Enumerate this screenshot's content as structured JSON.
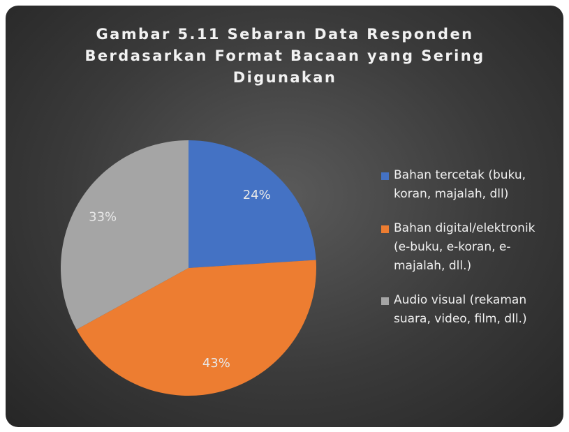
{
  "chart_data": {
    "type": "pie",
    "title": "Gambar 5.11 Sebaran Data Responden Berdasarkan Format Bacaan yang Sering Digunakan",
    "categories": [
      "Bahan tercetak (buku, koran, majalah, dll)",
      "Bahan digital/elektronik (e-buku, e-koran, e-majalah, dll.)",
      "Audio visual (rekaman suara, video, film, dll.)"
    ],
    "values": [
      24,
      43,
      33
    ],
    "value_labels": [
      "24%",
      "43%",
      "33%"
    ],
    "colors": [
      "#4472c4",
      "#ed7d31",
      "#a5a5a5"
    ],
    "legend": "right"
  }
}
